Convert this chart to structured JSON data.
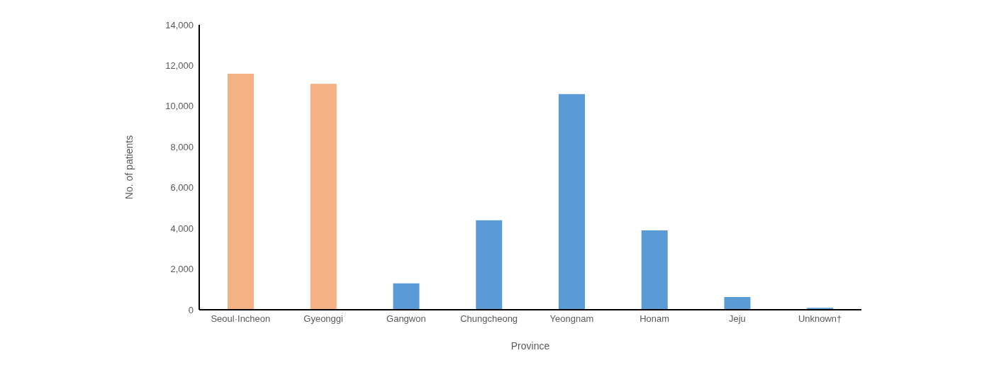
{
  "chart_data": {
    "type": "bar",
    "xlabel": "Province",
    "ylabel": "No. of patients",
    "categories": [
      "Seoul·Incheon",
      "Gyeonggi",
      "Gangwon",
      "Chungcheong",
      "Yeongnam",
      "Honam",
      "Jeju",
      "Unknown†"
    ],
    "values": [
      11600,
      11100,
      1300,
      4400,
      10600,
      3900,
      630,
      100
    ],
    "colors": [
      "#f4b183",
      "#f4b183",
      "#5b9bd5",
      "#5b9bd5",
      "#5b9bd5",
      "#5b9bd5",
      "#5b9bd5",
      "#5b9bd5"
    ],
    "ylim": [
      0,
      14000
    ],
    "yticks": [
      0,
      {
        "value": 2000,
        "label": "2,000"
      },
      {
        "value": 4000,
        "label": "4,000"
      },
      {
        "value": 6000,
        "label": "6,000"
      },
      {
        "value": 8000,
        "label": "8,000"
      },
      {
        "value": 10000,
        "label": "10,000"
      },
      {
        "value": 12000,
        "label": "12,000"
      },
      {
        "value": 14000,
        "label": "14,000"
      }
    ],
    "grid": false,
    "legend": false
  }
}
